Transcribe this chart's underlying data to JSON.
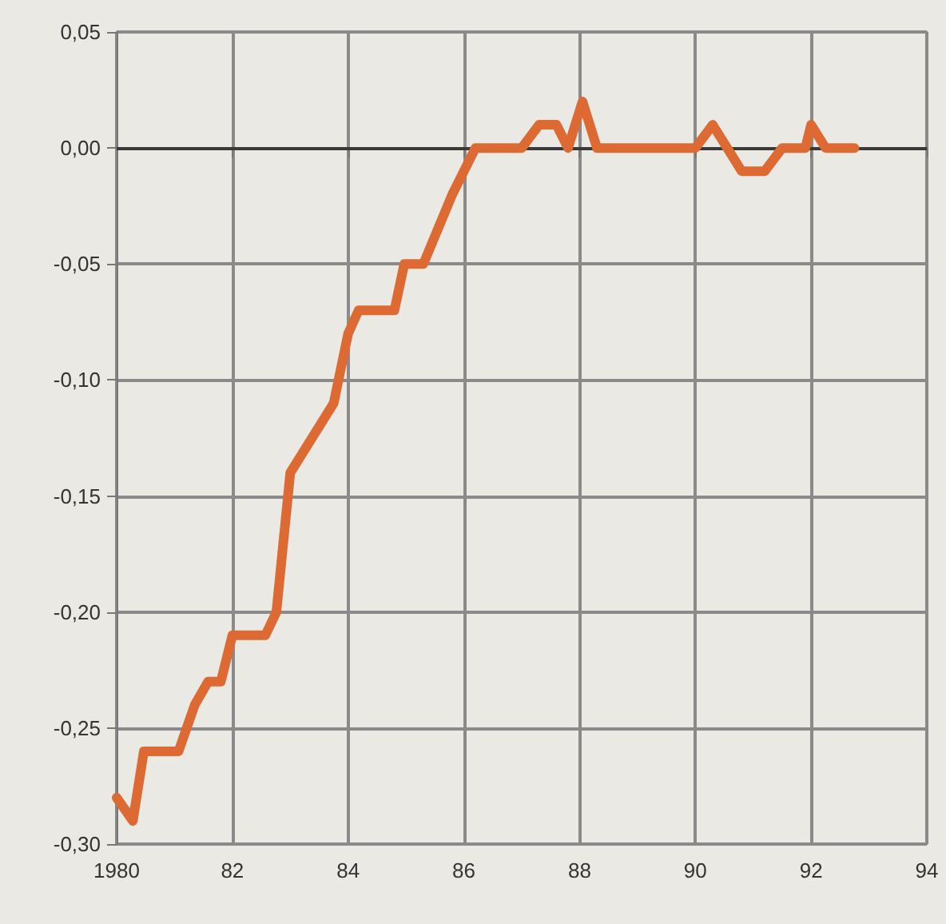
{
  "chart_data": {
    "type": "line",
    "x": [
      1980.0,
      1980.28,
      1980.47,
      1981.07,
      1981.35,
      1981.58,
      1981.8,
      1982.0,
      1982.57,
      1982.76,
      1983.0,
      1983.75,
      1984.0,
      1984.18,
      1984.8,
      1984.97,
      1985.3,
      1985.8,
      1986.2,
      1987.0,
      1987.3,
      1987.6,
      1987.8,
      1988.05,
      1988.3,
      1990.0,
      1990.3,
      1990.8,
      1991.2,
      1991.5,
      1991.9,
      1992.0,
      1992.25,
      1992.75
    ],
    "series": [
      {
        "color": "#dc6a32",
        "values": [
          -0.28,
          -0.29,
          -0.26,
          -0.26,
          -0.24,
          -0.23,
          -0.23,
          -0.21,
          -0.21,
          -0.2,
          -0.14,
          -0.11,
          -0.08,
          -0.07,
          -0.07,
          -0.05,
          -0.05,
          -0.02,
          0,
          0,
          0.01,
          0.01,
          0,
          0.02,
          0,
          0,
          0.01,
          -0.01,
          -0.01,
          0,
          0,
          0.01,
          0,
          0
        ]
      }
    ],
    "xlim": [
      1980,
      1994
    ],
    "xticks": [
      1980,
      {
        "value": 1982,
        "label": "82"
      },
      {
        "value": 1984,
        "label": "84"
      },
      {
        "value": 1986,
        "label": "86"
      },
      {
        "value": 1988,
        "label": "88"
      },
      {
        "value": 1990,
        "label": "90"
      },
      {
        "value": 1992,
        "label": "92"
      },
      {
        "value": 1994,
        "label": "94"
      }
    ],
    "ylim": [
      -0.3,
      0.05
    ],
    "yticks": [
      {
        "value": -0.3,
        "label": "-0,30"
      },
      {
        "value": -0.25,
        "label": "-0,25"
      },
      {
        "value": -0.2,
        "label": "-0,20"
      },
      {
        "value": -0.15,
        "label": "-0,15"
      },
      {
        "value": -0.1,
        "label": "-0,10"
      },
      {
        "value": -0.05,
        "label": "-0,05"
      },
      {
        "value": 0,
        "label": "0,00"
      },
      {
        "value": 0.05,
        "label": "0,05"
      }
    ],
    "ref_lines": [
      {
        "axis": "y",
        "value": 0,
        "color": "#3a3a3a"
      }
    ],
    "grid": true,
    "marker": "none",
    "line_style": "solid"
  }
}
